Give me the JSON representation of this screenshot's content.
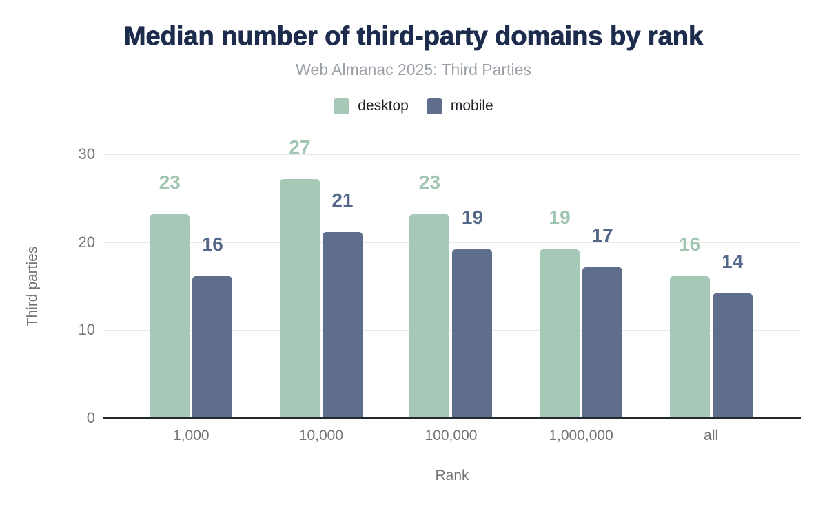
{
  "title": "Median number of third-party domains by rank",
  "subtitle": "Web Almanac 2025: Third Parties",
  "legend": [
    {
      "label": "desktop",
      "color": "#a6c9b7"
    },
    {
      "label": "mobile",
      "color": "#5f6e8c"
    }
  ],
  "chart_data": {
    "type": "bar",
    "categories": [
      "1,000",
      "10,000",
      "100,000",
      "1,000,000",
      "all"
    ],
    "series": [
      {
        "name": "desktop",
        "color": "#a6c9b7",
        "label_color": "#a0c5b0",
        "values": [
          23,
          27,
          23,
          19,
          16
        ]
      },
      {
        "name": "mobile",
        "color": "#5f6e8c",
        "label_color": "#546789",
        "values": [
          16,
          21,
          19,
          17,
          14
        ]
      }
    ],
    "title": "Median number of third-party domains by rank",
    "xlabel": "Rank",
    "ylabel": "Third parties",
    "yticks": [
      0,
      10,
      20,
      30
    ],
    "ylim": [
      0,
      30
    ],
    "grid": true,
    "legend_position": "top",
    "value_labels": true
  },
  "colors": {
    "title": "#1d2c4d",
    "subtitle": "#9aa0a6",
    "axis_text": "#757575",
    "gridline": "#e8e8e8",
    "baseline": "#24292e",
    "background": "#ffffff"
  }
}
